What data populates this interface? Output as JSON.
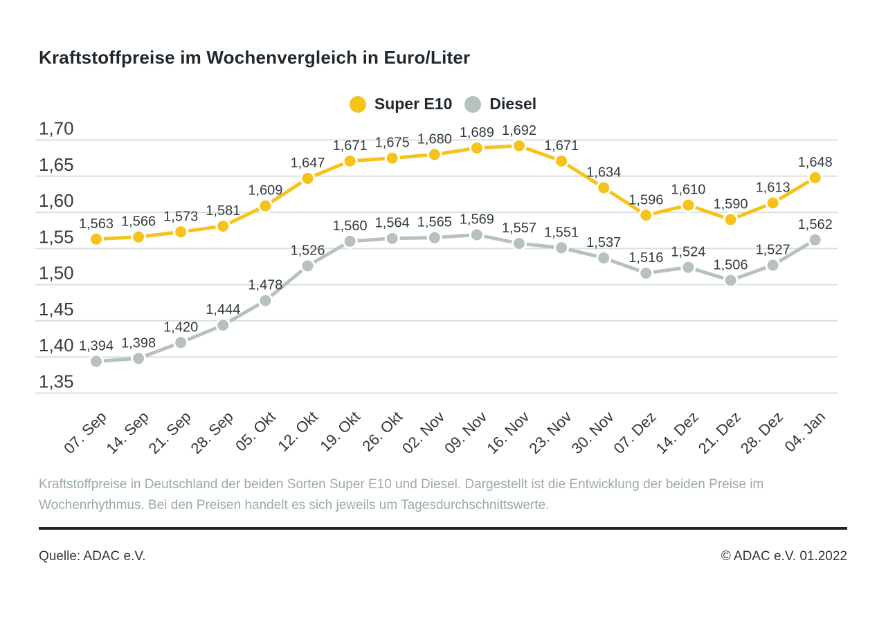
{
  "title": "Kraftstoffpreise im Wochenvergleich in Euro/Liter",
  "legend": {
    "items": [
      {
        "label": "Super E10",
        "color": "#f5c31a"
      },
      {
        "label": "Diesel",
        "color": "#b7c2bc"
      }
    ]
  },
  "chart_data": {
    "type": "line",
    "title": "Kraftstoffpreise im Wochenvergleich in Euro/Liter",
    "xlabel": "",
    "ylabel": "Euro/Liter",
    "categories": [
      "07. Sep",
      "14. Sep",
      "21. Sep",
      "28. Sep",
      "05. Okt",
      "12. Okt",
      "19. Okt",
      "26. Okt",
      "02. Nov",
      "09. Nov",
      "16. Nov",
      "23. Nov",
      "30. Nov",
      "07. Dez",
      "14. Dez",
      "21. Dez",
      "28. Dez",
      "04. Jan"
    ],
    "series": [
      {
        "name": "Super E10",
        "color": "#f5c31a",
        "values": [
          1.563,
          1.566,
          1.573,
          1.581,
          1.609,
          1.647,
          1.671,
          1.675,
          1.68,
          1.689,
          1.692,
          1.671,
          1.634,
          1.596,
          1.61,
          1.59,
          1.613,
          1.648
        ]
      },
      {
        "name": "Diesel",
        "color": "#b7c2bc",
        "values": [
          1.394,
          1.398,
          1.42,
          1.444,
          1.478,
          1.526,
          1.56,
          1.564,
          1.565,
          1.569,
          1.557,
          1.551,
          1.537,
          1.516,
          1.524,
          1.506,
          1.527,
          1.562
        ]
      }
    ],
    "ylim": [
      1.35,
      1.7
    ],
    "yticks": [
      1.7,
      1.65,
      1.6,
      1.55,
      1.5,
      1.45,
      1.4,
      1.35
    ],
    "decimal_separator": ",",
    "grid": true,
    "gridline_color": "#dadfde",
    "axis_text_color": "#333b41",
    "value_label_color": "#333b41",
    "legend_position": "top-center"
  },
  "footnote": "Kraftstoffpreise in Deutschland der beiden Sorten Super E10 und Diesel. Dargestellt ist die Entwicklung der beiden Preise im Wochenrhythmus. Bei den Preisen handelt es sich jeweils um Tagesdurchschnittswerte.",
  "source_left": "Quelle: ADAC e.V.",
  "source_right": "© ADAC e.V. 01.2022"
}
